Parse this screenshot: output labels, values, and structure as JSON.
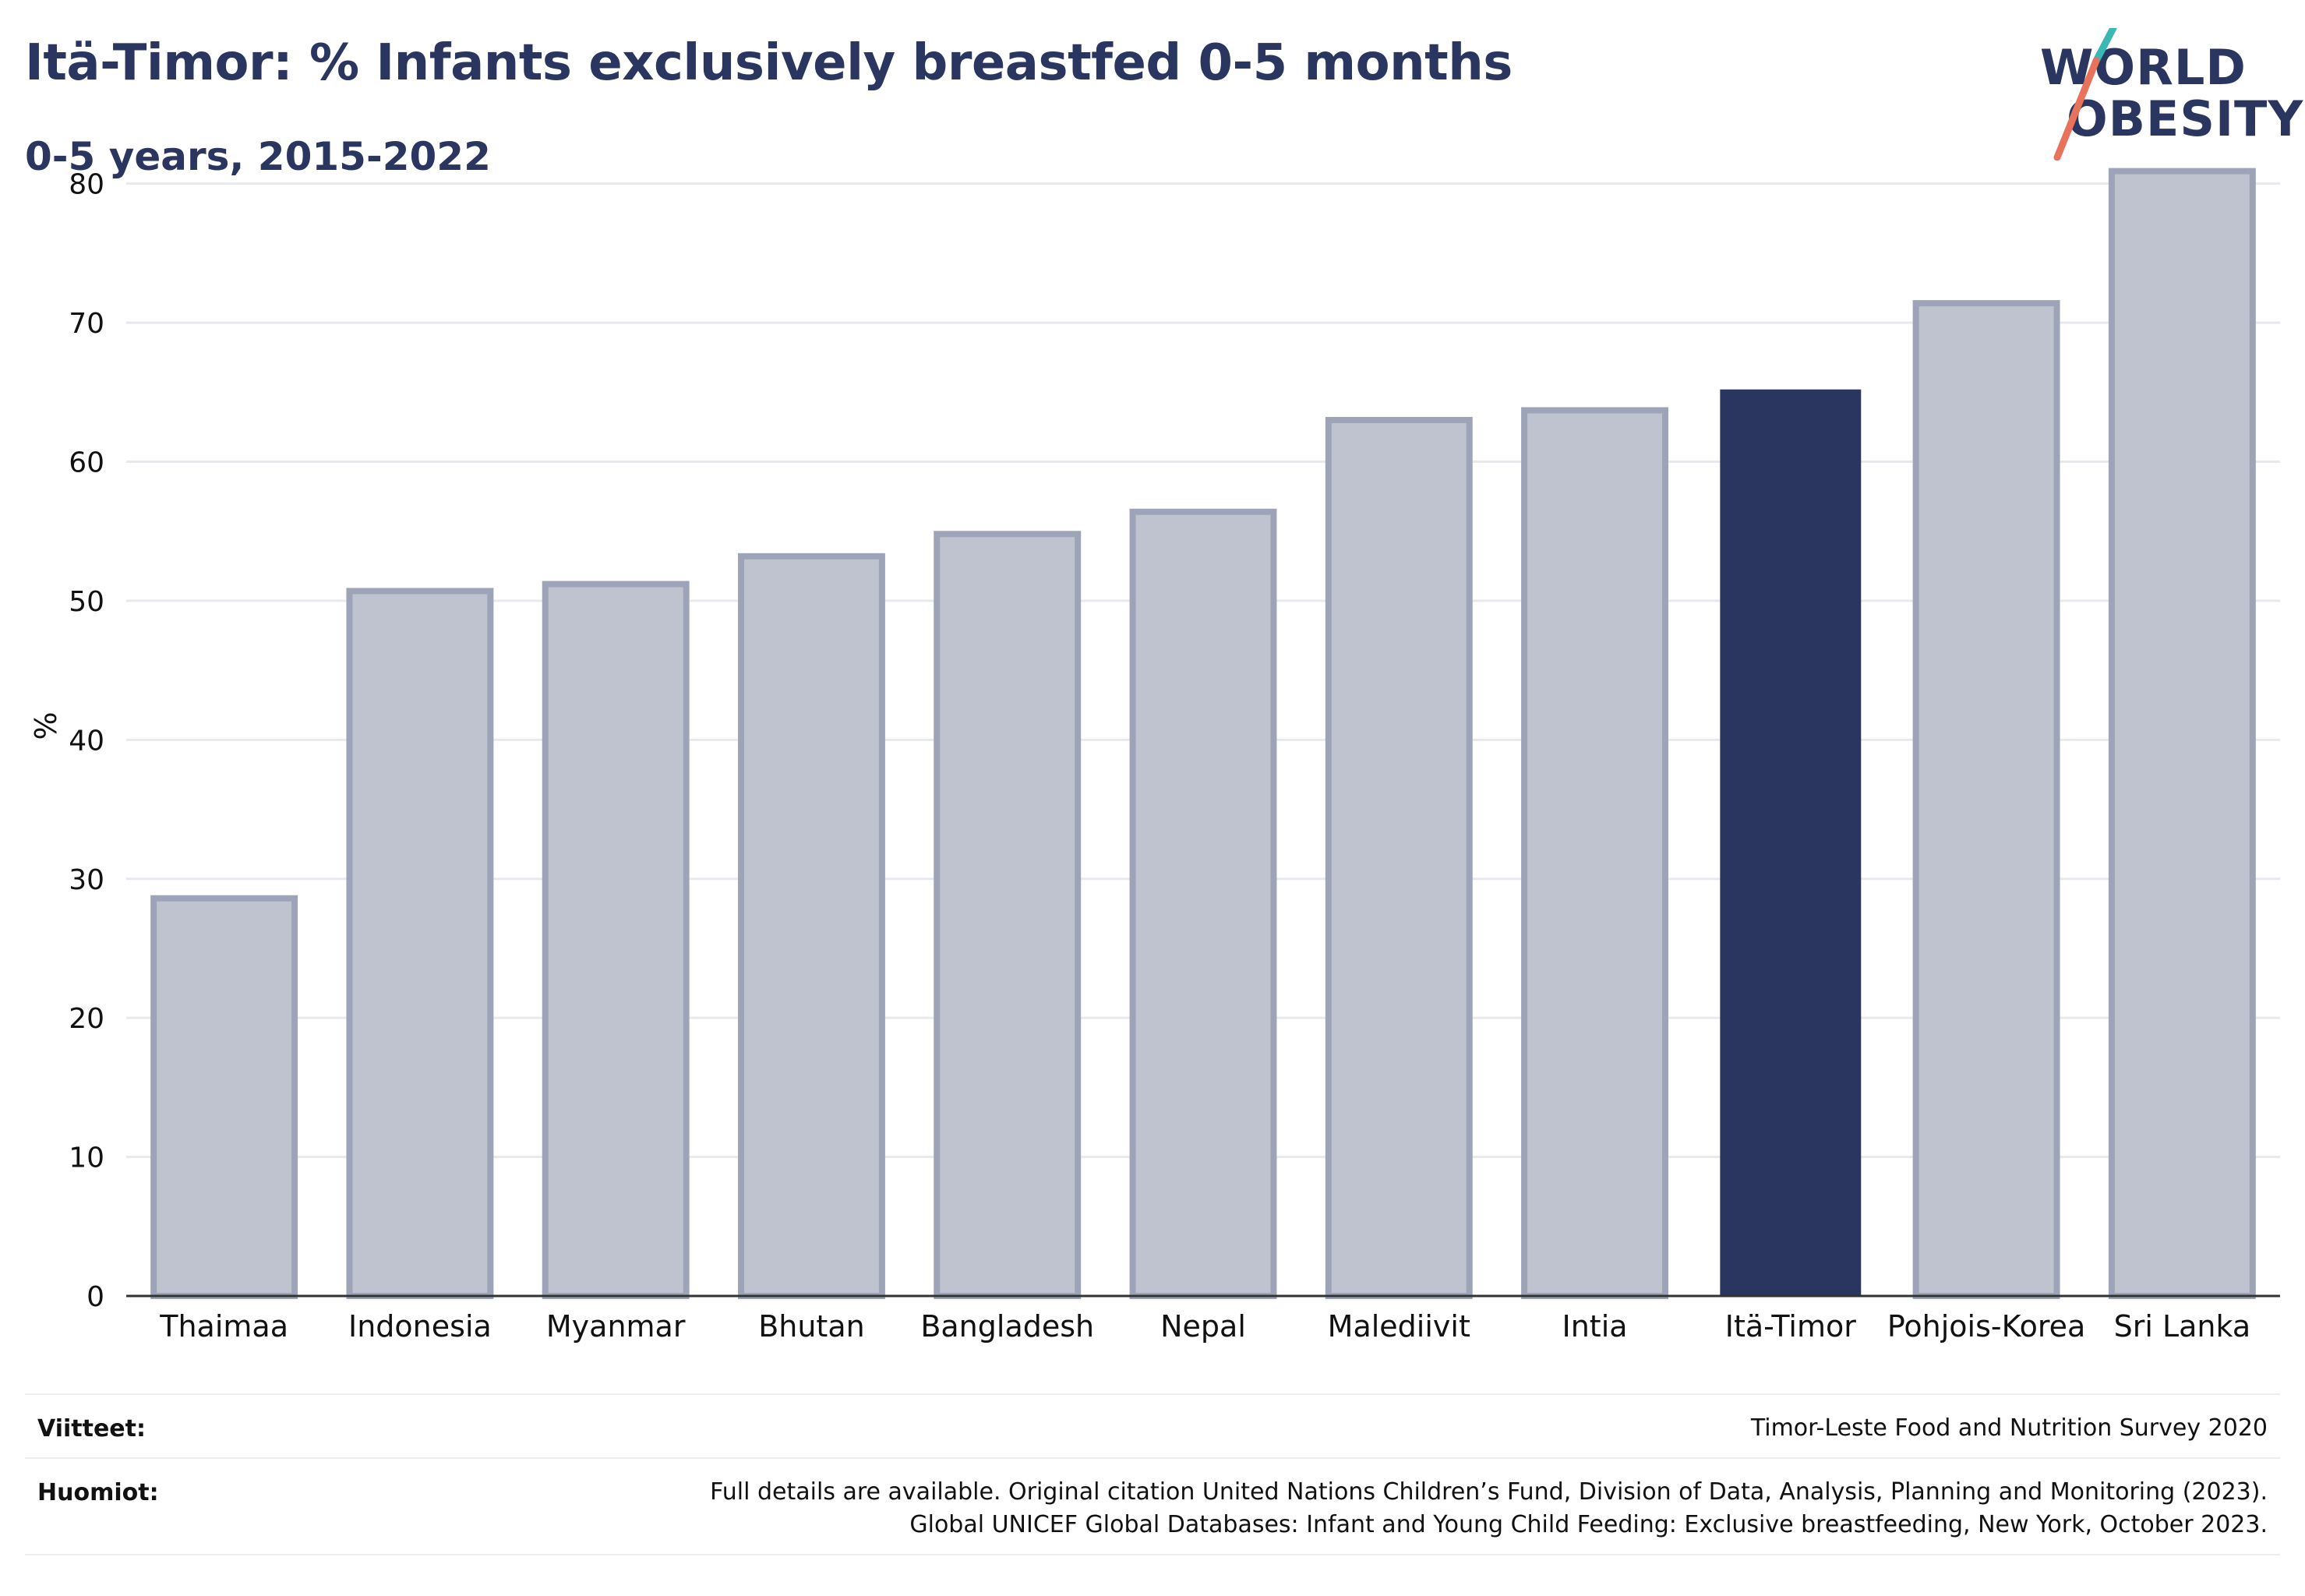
{
  "header": {
    "title": "Itä-Timor: % Infants exclusively breastfed 0-5 months",
    "subtitle": "0-5 years, 2015-2022"
  },
  "logo": {
    "line1": "WORLD",
    "line2": "OBESITY",
    "colors": {
      "text": "#2a3560",
      "slash_top": "#3bb8b3",
      "slash_bottom": "#e8725c"
    }
  },
  "chart_data": {
    "type": "bar",
    "ylabel": "%",
    "xlabel": "",
    "ylim": [
      0,
      82
    ],
    "yticks": [
      0,
      10,
      20,
      30,
      40,
      50,
      60,
      70,
      80
    ],
    "grid": true,
    "categories": [
      "Thaimaa",
      "Indonesia",
      "Myanmar",
      "Bhutan",
      "Bangladesh",
      "Nepal",
      "Malediivit",
      "Intia",
      "Itä-Timor",
      "Pohjois-Korea",
      "Sri Lanka"
    ],
    "values": [
      28.6,
      50.7,
      51.2,
      53.2,
      54.8,
      56.4,
      63.0,
      63.7,
      65.2,
      71.4,
      80.9
    ],
    "highlight": "Itä-Timor",
    "colors": {
      "highlight": "#2a3560",
      "other_fill": "#bfc3d0",
      "other_stroke": "#9ea4b8"
    }
  },
  "footer": {
    "sources_label": "Viitteet:",
    "sources_text": "Timor-Leste Food and Nutrition Survey 2020",
    "notes_label": "Huomiot:",
    "notes_line1": "Full details are available. Original citation United Nations Children’s Fund, Division of Data, Analysis, Planning and Monitoring (2023).",
    "notes_line2": "Global UNICEF Global Databases: Infant and Young Child Feeding: Exclusive breastfeeding, New York, October 2023."
  }
}
